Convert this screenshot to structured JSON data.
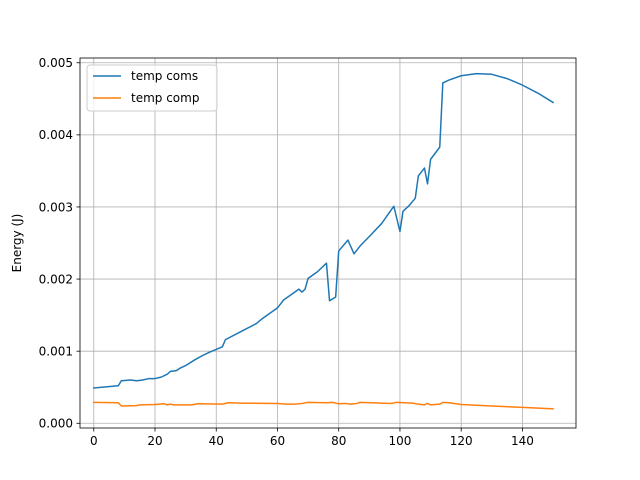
{
  "chart_data": {
    "type": "line",
    "title": "",
    "xlabel": "",
    "ylabel": "Energy (J)",
    "xlim": [
      -4.5,
      157.5
    ],
    "ylim": [
      -6.56e-05,
      0.005066
    ],
    "xticks": [
      0,
      20,
      40,
      60,
      80,
      100,
      120,
      140
    ],
    "xtick_labels": [
      "0",
      "20",
      "40",
      "60",
      "80",
      "100",
      "120",
      "140"
    ],
    "yticks": [
      0.0,
      0.001,
      0.002,
      0.003,
      0.004,
      0.005
    ],
    "ytick_labels": [
      "0.000",
      "0.001",
      "0.002",
      "0.003",
      "0.004",
      "0.005"
    ],
    "grid": true,
    "legend_position": "upper-left",
    "colors": {
      "series1": "#1f77b4",
      "series2": "#ff7f0e",
      "grid": "#b0b0b0",
      "axis": "#000000"
    },
    "series": [
      {
        "name": "temp coms",
        "points": [
          [
            0,
            0.00049
          ],
          [
            4,
            0.000505
          ],
          [
            8,
            0.00052
          ],
          [
            9,
            0.00059
          ],
          [
            12,
            0.0006
          ],
          [
            14,
            0.00059
          ],
          [
            16,
            0.0006
          ],
          [
            18,
            0.00062
          ],
          [
            20,
            0.00062
          ],
          [
            22,
            0.00064
          ],
          [
            24,
            0.00068
          ],
          [
            25,
            0.00072
          ],
          [
            27,
            0.00073
          ],
          [
            28,
            0.00076
          ],
          [
            30,
            0.0008
          ],
          [
            33,
            0.00088
          ],
          [
            36,
            0.00095
          ],
          [
            38,
            0.00099
          ],
          [
            42,
            0.00106
          ],
          [
            43,
            0.00116
          ],
          [
            48,
            0.00127
          ],
          [
            53,
            0.00138
          ],
          [
            55,
            0.00145
          ],
          [
            60,
            0.0016
          ],
          [
            62,
            0.00171
          ],
          [
            65,
            0.0018
          ],
          [
            67,
            0.00186
          ],
          [
            68,
            0.00182
          ],
          [
            69,
            0.00186
          ],
          [
            70,
            0.00201
          ],
          [
            73,
            0.0021
          ],
          [
            76,
            0.00222
          ],
          [
            77,
            0.0017
          ],
          [
            79,
            0.00175
          ],
          [
            80,
            0.00239
          ],
          [
            83,
            0.00254
          ],
          [
            85,
            0.00235
          ],
          [
            87,
            0.00246
          ],
          [
            90,
            0.00259
          ],
          [
            94,
            0.00277
          ],
          [
            98,
            0.00301
          ],
          [
            100,
            0.00266
          ],
          [
            101,
            0.00294
          ],
          [
            103,
            0.00302
          ],
          [
            105,
            0.00312
          ],
          [
            106,
            0.00343
          ],
          [
            108,
            0.00354
          ],
          [
            109,
            0.00332
          ],
          [
            110,
            0.00366
          ],
          [
            113,
            0.00383
          ],
          [
            114,
            0.00472
          ],
          [
            116,
            0.00476
          ],
          [
            120,
            0.00482
          ],
          [
            125,
            0.00485
          ],
          [
            130,
            0.00484
          ],
          [
            135,
            0.00478
          ],
          [
            140,
            0.00469
          ],
          [
            145,
            0.00458
          ],
          [
            150,
            0.00445
          ]
        ]
      },
      {
        "name": "temp comp",
        "points": [
          [
            0,
            0.00029
          ],
          [
            8,
            0.000285
          ],
          [
            9,
            0.00024
          ],
          [
            14,
            0.000245
          ],
          [
            15,
            0.000255
          ],
          [
            20,
            0.00026
          ],
          [
            23,
            0.00027
          ],
          [
            24,
            0.000255
          ],
          [
            25,
            0.000265
          ],
          [
            26,
            0.000255
          ],
          [
            32,
            0.000255
          ],
          [
            34,
            0.00027
          ],
          [
            42,
            0.000265
          ],
          [
            44,
            0.000285
          ],
          [
            48,
            0.00028
          ],
          [
            60,
            0.000275
          ],
          [
            63,
            0.000265
          ],
          [
            66,
            0.000265
          ],
          [
            68,
            0.000275
          ],
          [
            70,
            0.00029
          ],
          [
            76,
            0.000285
          ],
          [
            78,
            0.00029
          ],
          [
            80,
            0.00027
          ],
          [
            82,
            0.000275
          ],
          [
            84,
            0.000265
          ],
          [
            86,
            0.000275
          ],
          [
            87,
            0.00029
          ],
          [
            97,
            0.000275
          ],
          [
            99,
            0.00029
          ],
          [
            104,
            0.00028
          ],
          [
            106,
            0.000265
          ],
          [
            108,
            0.000255
          ],
          [
            109,
            0.000275
          ],
          [
            110,
            0.000255
          ],
          [
            113,
            0.000265
          ],
          [
            114,
            0.00029
          ],
          [
            116,
            0.000285
          ],
          [
            120,
            0.00026
          ],
          [
            130,
            0.00024
          ],
          [
            140,
            0.00022
          ],
          [
            150,
            0.0002
          ]
        ]
      }
    ]
  }
}
